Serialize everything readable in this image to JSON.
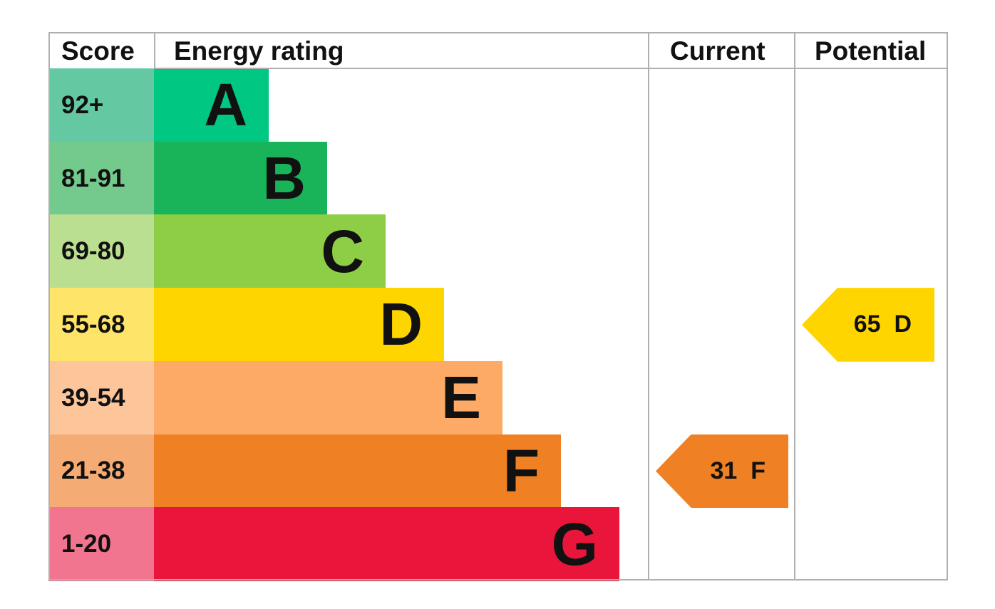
{
  "chart_data": {
    "type": "bar",
    "headers": {
      "score": "Score",
      "rating": "Energy rating",
      "current": "Current",
      "potential": "Potential"
    },
    "bands": [
      {
        "letter": "A",
        "range": "92+",
        "color": "#00c781",
        "light": "#64c8a2"
      },
      {
        "letter": "B",
        "range": "81-91",
        "color": "#19b459",
        "light": "#74ca8c"
      },
      {
        "letter": "C",
        "range": "69-80",
        "color": "#8dce46",
        "light": "#badf90"
      },
      {
        "letter": "D",
        "range": "55-68",
        "color": "#ffd500",
        "light": "#ffe46a"
      },
      {
        "letter": "E",
        "range": "39-54",
        "color": "#fcaa65",
        "light": "#fdc59a"
      },
      {
        "letter": "F",
        "range": "21-38",
        "color": "#ef8023",
        "light": "#f4ab74"
      },
      {
        "letter": "G",
        "range": "1-20",
        "color": "#e9153b",
        "light": "#f27590"
      }
    ],
    "current": {
      "score": 31,
      "band": "F",
      "label": "31  F",
      "color": "#ef8023"
    },
    "potential": {
      "score": 65,
      "band": "D",
      "label": "65  D",
      "color": "#ffd500"
    }
  }
}
